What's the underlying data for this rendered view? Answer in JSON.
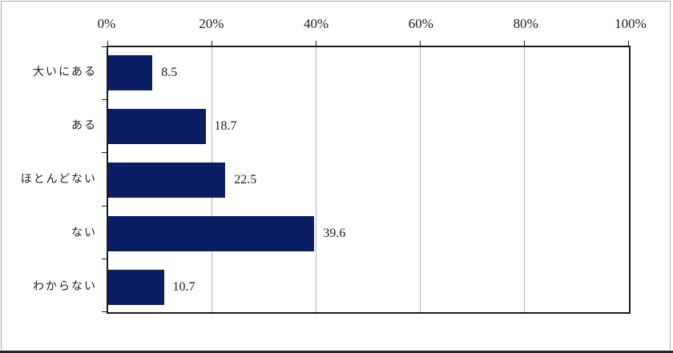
{
  "chart_data": {
    "type": "bar",
    "orientation": "horizontal",
    "title": "",
    "xlabel": "",
    "ylabel": "",
    "categories": [
      "大いにある",
      "ある",
      "ほとんどない",
      "ない",
      "わからない"
    ],
    "values": [
      8.5,
      18.7,
      22.5,
      39.6,
      10.7
    ],
    "value_labels": [
      "8.5",
      "18.7",
      "22.5",
      "39.6",
      "10.7"
    ],
    "x_ticks": [
      "0%",
      "20%",
      "40%",
      "60%",
      "80%",
      "100%"
    ],
    "x_tick_values": [
      0,
      20,
      40,
      60,
      80,
      100
    ],
    "xlim": [
      0,
      100
    ],
    "grid": "vertical-only",
    "axis_position": "top",
    "legend": "none",
    "colors": {
      "bar": "#0a1e64",
      "gridline": "#b3b3b3",
      "plot_border": "#1a1a1a",
      "outer_frame": "#a8a8a8",
      "bottom_strip": "#26262c",
      "text": "#1a1a1a",
      "background": "#ffffff"
    }
  }
}
